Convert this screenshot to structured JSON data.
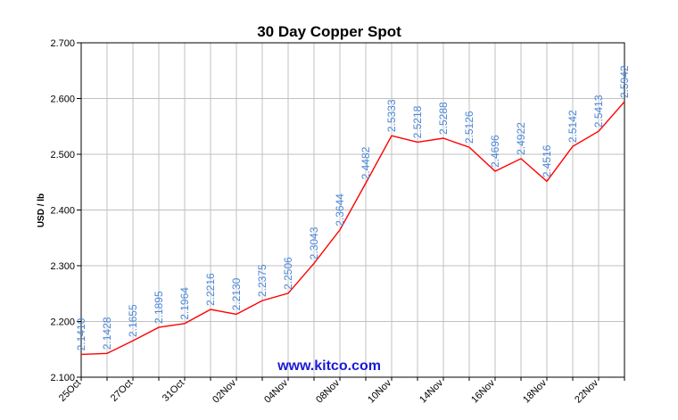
{
  "chart_data": {
    "type": "line",
    "title": "30 Day Copper Spot",
    "ylabel": "USD / lb",
    "xlabel": "",
    "ylim": [
      2.1,
      2.7
    ],
    "y_ticks": [
      "2.100",
      "2.200",
      "2.300",
      "2.400",
      "2.500",
      "2.600",
      "2.700"
    ],
    "x_tick_labels": [
      "25Oct",
      "27Oct",
      "31Oct",
      "02Nov",
      "04Nov",
      "08Nov",
      "10Nov",
      "14Nov",
      "16Nov",
      "18Nov",
      "22Nov"
    ],
    "grid": true,
    "series": [
      {
        "color": "#ff0000",
        "values": [
          2.141,
          2.1428,
          2.1655,
          2.1895,
          2.1964,
          2.2216,
          2.213,
          2.2375,
          2.2506,
          2.3043,
          2.3644,
          2.4482,
          2.5333,
          2.5218,
          2.5288,
          2.5126,
          2.4696,
          2.4922,
          2.4516,
          2.5142,
          2.5413,
          2.5942
        ],
        "labels": [
          "2.1410",
          "2.1428",
          "2.1655",
          "2.1895",
          "2.1964",
          "2.2216",
          "2.2130",
          "2.2375",
          "2.2506",
          "2.3043",
          "2.3644",
          "2.4482",
          "2.5333",
          "2.5218",
          "2.5288",
          "2.5126",
          "2.4696",
          "2.4922",
          "2.4516",
          "2.5142",
          "2.5413",
          "2.5942"
        ]
      }
    ],
    "label_color": "#4a86d6"
  },
  "watermark": "www.kitco.com"
}
